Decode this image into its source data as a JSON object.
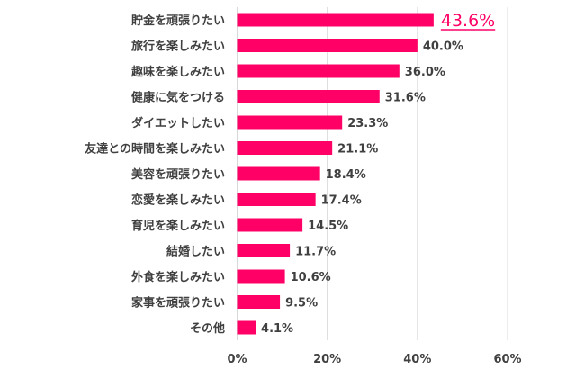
{
  "chart_data": {
    "type": "bar",
    "orientation": "horizontal",
    "categories": [
      "貯金を頑張りたい",
      "旅行を楽しみたい",
      "趣味を楽しみたい",
      "健康に気をつける",
      "ダイエットしたい",
      "友達との時間を楽しみたい",
      "美容を頑張りたい",
      "恋愛を楽しみたい",
      "育児を楽しみたい",
      "結婚したい",
      "外食を楽しみたい",
      "家事を頑張りたい",
      "その他"
    ],
    "values": [
      43.6,
      40.0,
      36.0,
      31.6,
      23.3,
      21.1,
      18.4,
      17.4,
      14.5,
      11.7,
      10.6,
      9.5,
      4.1
    ],
    "value_labels": [
      "43.6%",
      "40.0%",
      "36.0%",
      "31.6%",
      "23.3%",
      "21.1%",
      "18.4%",
      "17.4%",
      "14.5%",
      "11.7%",
      "10.6%",
      "9.5%",
      "4.1%"
    ],
    "highlight_index": 0,
    "xlim": [
      0,
      60
    ],
    "xticks": [
      0,
      20,
      40,
      60
    ],
    "xtick_labels": [
      "0%",
      "20%",
      "40%",
      "60%"
    ],
    "grid": true,
    "title": "",
    "xlabel": "",
    "ylabel": "",
    "bar_color": "#ff0066",
    "highlight_color": "#ff0066"
  }
}
